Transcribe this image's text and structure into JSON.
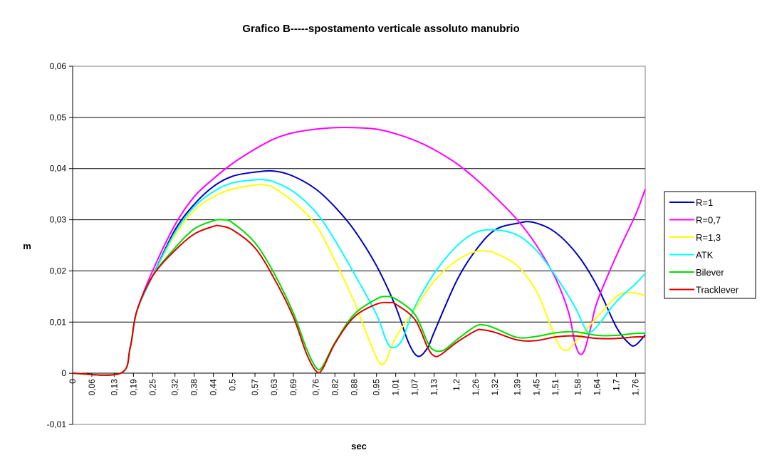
{
  "chart_data": {
    "type": "line",
    "title": "Grafico B-----spostamento verticale assoluto manubrio",
    "xlabel": "sec",
    "ylabel": "m",
    "xlim": [
      0,
      1.79
    ],
    "ylim": [
      -0.01,
      0.06
    ],
    "grid": "horizontal",
    "legend_position": "right",
    "y_ticks": [
      {
        "value": 0.06,
        "label": "0,06"
      },
      {
        "value": 0.05,
        "label": "0,05"
      },
      {
        "value": 0.04,
        "label": "0,04"
      },
      {
        "value": 0.03,
        "label": "0,03"
      },
      {
        "value": 0.02,
        "label": "0,02"
      },
      {
        "value": 0.01,
        "label": "0,01"
      },
      {
        "value": 0,
        "label": "0"
      },
      {
        "value": -0.01,
        "label": "-0,01"
      }
    ],
    "x_ticks": [
      {
        "value": 0,
        "label": "0"
      },
      {
        "value": 0.06,
        "label": "0,06"
      },
      {
        "value": 0.13,
        "label": "0,13"
      },
      {
        "value": 0.19,
        "label": "0,19"
      },
      {
        "value": 0.25,
        "label": "0,25"
      },
      {
        "value": 0.32,
        "label": "0,32"
      },
      {
        "value": 0.38,
        "label": "0,38"
      },
      {
        "value": 0.44,
        "label": "0,44"
      },
      {
        "value": 0.5,
        "label": "0,5"
      },
      {
        "value": 0.57,
        "label": "0,57"
      },
      {
        "value": 0.63,
        "label": "0,63"
      },
      {
        "value": 0.69,
        "label": "0,69"
      },
      {
        "value": 0.76,
        "label": "0,76"
      },
      {
        "value": 0.82,
        "label": "0,82"
      },
      {
        "value": 0.88,
        "label": "0,88"
      },
      {
        "value": 0.95,
        "label": "0,95"
      },
      {
        "value": 1.01,
        "label": "1,01"
      },
      {
        "value": 1.07,
        "label": "1,07"
      },
      {
        "value": 1.13,
        "label": "1,13"
      },
      {
        "value": 1.2,
        "label": "1,2"
      },
      {
        "value": 1.26,
        "label": "1,26"
      },
      {
        "value": 1.32,
        "label": "1,32"
      },
      {
        "value": 1.39,
        "label": "1,39"
      },
      {
        "value": 1.45,
        "label": "1,45"
      },
      {
        "value": 1.51,
        "label": "1,51"
      },
      {
        "value": 1.58,
        "label": "1,58"
      },
      {
        "value": 1.64,
        "label": "1,64"
      },
      {
        "value": 1.7,
        "label": "1,7"
      },
      {
        "value": 1.76,
        "label": "1,76"
      }
    ],
    "series": [
      {
        "name": "R=1",
        "color": "#0000c0",
        "points": [
          [
            0,
            0
          ],
          [
            0.15,
            0
          ],
          [
            0.18,
            0.005
          ],
          [
            0.2,
            0.012
          ],
          [
            0.25,
            0.019
          ],
          [
            0.32,
            0.028
          ],
          [
            0.38,
            0.033
          ],
          [
            0.44,
            0.0365
          ],
          [
            0.5,
            0.0385
          ],
          [
            0.57,
            0.0393
          ],
          [
            0.63,
            0.0395
          ],
          [
            0.69,
            0.0385
          ],
          [
            0.76,
            0.036
          ],
          [
            0.82,
            0.0325
          ],
          [
            0.88,
            0.028
          ],
          [
            0.95,
            0.021
          ],
          [
            1.01,
            0.013
          ],
          [
            1.05,
            0.006
          ],
          [
            1.08,
            0.0033
          ],
          [
            1.11,
            0.005
          ],
          [
            1.13,
            0.008
          ],
          [
            1.2,
            0.018
          ],
          [
            1.26,
            0.024
          ],
          [
            1.32,
            0.028
          ],
          [
            1.39,
            0.0293
          ],
          [
            1.44,
            0.0295
          ],
          [
            1.51,
            0.0275
          ],
          [
            1.58,
            0.023
          ],
          [
            1.64,
            0.017
          ],
          [
            1.7,
            0.009
          ],
          [
            1.74,
            0.0058
          ],
          [
            1.76,
            0.0055
          ],
          [
            1.79,
            0.0075
          ]
        ]
      },
      {
        "name": "R=0,7",
        "color": "#ff00ff",
        "points": [
          [
            0,
            0
          ],
          [
            0.15,
            0
          ],
          [
            0.18,
            0.005
          ],
          [
            0.2,
            0.012
          ],
          [
            0.25,
            0.02
          ],
          [
            0.32,
            0.029
          ],
          [
            0.38,
            0.0345
          ],
          [
            0.44,
            0.038
          ],
          [
            0.5,
            0.041
          ],
          [
            0.57,
            0.0438
          ],
          [
            0.63,
            0.0458
          ],
          [
            0.69,
            0.047
          ],
          [
            0.76,
            0.0477
          ],
          [
            0.82,
            0.048
          ],
          [
            0.88,
            0.048
          ],
          [
            0.95,
            0.0477
          ],
          [
            1.01,
            0.0468
          ],
          [
            1.07,
            0.0455
          ],
          [
            1.13,
            0.0437
          ],
          [
            1.2,
            0.041
          ],
          [
            1.26,
            0.038
          ],
          [
            1.32,
            0.0345
          ],
          [
            1.39,
            0.03
          ],
          [
            1.45,
            0.025
          ],
          [
            1.51,
            0.0185
          ],
          [
            1.55,
            0.012
          ],
          [
            1.57,
            0.006
          ],
          [
            1.585,
            0.0038
          ],
          [
            1.6,
            0.0045
          ],
          [
            1.62,
            0.009
          ],
          [
            1.64,
            0.014
          ],
          [
            1.7,
            0.023
          ],
          [
            1.76,
            0.031
          ],
          [
            1.79,
            0.036
          ]
        ]
      },
      {
        "name": "R=1,3",
        "color": "#ffff00",
        "points": [
          [
            0,
            0
          ],
          [
            0.15,
            0
          ],
          [
            0.18,
            0.005
          ],
          [
            0.2,
            0.012
          ],
          [
            0.25,
            0.019
          ],
          [
            0.32,
            0.027
          ],
          [
            0.38,
            0.0318
          ],
          [
            0.44,
            0.0345
          ],
          [
            0.5,
            0.036
          ],
          [
            0.57,
            0.0368
          ],
          [
            0.6,
            0.0368
          ],
          [
            0.63,
            0.0362
          ],
          [
            0.69,
            0.0335
          ],
          [
            0.76,
            0.029
          ],
          [
            0.82,
            0.022
          ],
          [
            0.88,
            0.014
          ],
          [
            0.93,
            0.006
          ],
          [
            0.96,
            0.002
          ],
          [
            0.98,
            0.0025
          ],
          [
            1.01,
            0.007
          ],
          [
            1.07,
            0.0125
          ],
          [
            1.13,
            0.018
          ],
          [
            1.2,
            0.022
          ],
          [
            1.26,
            0.0238
          ],
          [
            1.3,
            0.0238
          ],
          [
            1.32,
            0.0235
          ],
          [
            1.39,
            0.021
          ],
          [
            1.45,
            0.016
          ],
          [
            1.49,
            0.01
          ],
          [
            1.52,
            0.0055
          ],
          [
            1.545,
            0.0045
          ],
          [
            1.57,
            0.006
          ],
          [
            1.64,
            0.011
          ],
          [
            1.7,
            0.015
          ],
          [
            1.74,
            0.0158
          ],
          [
            1.79,
            0.0152
          ]
        ]
      },
      {
        "name": "ATK",
        "color": "#00ffff",
        "points": [
          [
            0,
            0
          ],
          [
            0.15,
            0
          ],
          [
            0.18,
            0.005
          ],
          [
            0.2,
            0.012
          ],
          [
            0.25,
            0.019
          ],
          [
            0.32,
            0.0275
          ],
          [
            0.38,
            0.0325
          ],
          [
            0.44,
            0.0355
          ],
          [
            0.5,
            0.0372
          ],
          [
            0.57,
            0.0378
          ],
          [
            0.6,
            0.0378
          ],
          [
            0.63,
            0.0374
          ],
          [
            0.69,
            0.0355
          ],
          [
            0.76,
            0.0315
          ],
          [
            0.82,
            0.026
          ],
          [
            0.88,
            0.0195
          ],
          [
            0.95,
            0.0115
          ],
          [
            0.98,
            0.0065
          ],
          [
            1.0,
            0.005
          ],
          [
            1.03,
            0.0065
          ],
          [
            1.07,
            0.013
          ],
          [
            1.13,
            0.0195
          ],
          [
            1.2,
            0.0248
          ],
          [
            1.26,
            0.0275
          ],
          [
            1.32,
            0.028
          ],
          [
            1.39,
            0.027
          ],
          [
            1.45,
            0.024
          ],
          [
            1.51,
            0.019
          ],
          [
            1.57,
            0.013
          ],
          [
            1.6,
            0.009
          ],
          [
            1.615,
            0.008
          ],
          [
            1.64,
            0.0092
          ],
          [
            1.7,
            0.014
          ],
          [
            1.76,
            0.0175
          ],
          [
            1.79,
            0.0195
          ]
        ]
      },
      {
        "name": "Bilever",
        "color": "#00dd00",
        "points": [
          [
            0,
            0
          ],
          [
            0.15,
            0
          ],
          [
            0.18,
            0.005
          ],
          [
            0.2,
            0.012
          ],
          [
            0.25,
            0.019
          ],
          [
            0.32,
            0.0245
          ],
          [
            0.38,
            0.0282
          ],
          [
            0.44,
            0.0298
          ],
          [
            0.47,
            0.03
          ],
          [
            0.5,
            0.0294
          ],
          [
            0.57,
            0.0255
          ],
          [
            0.63,
            0.0195
          ],
          [
            0.69,
            0.0118
          ],
          [
            0.73,
            0.005
          ],
          [
            0.76,
            0.0012
          ],
          [
            0.78,
            0.0012
          ],
          [
            0.82,
            0.006
          ],
          [
            0.88,
            0.0115
          ],
          [
            0.95,
            0.0145
          ],
          [
            0.98,
            0.015
          ],
          [
            1.01,
            0.0145
          ],
          [
            1.07,
            0.0115
          ],
          [
            1.11,
            0.006
          ],
          [
            1.13,
            0.0045
          ],
          [
            1.16,
            0.0045
          ],
          [
            1.2,
            0.0065
          ],
          [
            1.26,
            0.0092
          ],
          [
            1.29,
            0.0094
          ],
          [
            1.32,
            0.0088
          ],
          [
            1.39,
            0.007
          ],
          [
            1.45,
            0.0072
          ],
          [
            1.51,
            0.0079
          ],
          [
            1.57,
            0.0081
          ],
          [
            1.64,
            0.0074
          ],
          [
            1.7,
            0.0074
          ],
          [
            1.76,
            0.0078
          ],
          [
            1.79,
            0.0078
          ]
        ]
      },
      {
        "name": "Tracklever",
        "color": "#dd0000",
        "points": [
          [
            0,
            0
          ],
          [
            0.15,
            0
          ],
          [
            0.18,
            0.005
          ],
          [
            0.2,
            0.012
          ],
          [
            0.25,
            0.019
          ],
          [
            0.32,
            0.024
          ],
          [
            0.38,
            0.0272
          ],
          [
            0.44,
            0.0287
          ],
          [
            0.46,
            0.0288
          ],
          [
            0.5,
            0.028
          ],
          [
            0.57,
            0.0245
          ],
          [
            0.63,
            0.0185
          ],
          [
            0.69,
            0.011
          ],
          [
            0.73,
            0.004
          ],
          [
            0.76,
            0.0005
          ],
          [
            0.78,
            0.0007
          ],
          [
            0.82,
            0.0058
          ],
          [
            0.88,
            0.011
          ],
          [
            0.95,
            0.0135
          ],
          [
            0.99,
            0.0138
          ],
          [
            1.01,
            0.0135
          ],
          [
            1.07,
            0.0105
          ],
          [
            1.11,
            0.005
          ],
          [
            1.13,
            0.0034
          ],
          [
            1.15,
            0.0036
          ],
          [
            1.2,
            0.006
          ],
          [
            1.26,
            0.0083
          ],
          [
            1.28,
            0.0085
          ],
          [
            1.32,
            0.008
          ],
          [
            1.39,
            0.0065
          ],
          [
            1.45,
            0.0064
          ],
          [
            1.51,
            0.0071
          ],
          [
            1.57,
            0.0073
          ],
          [
            1.64,
            0.0068
          ],
          [
            1.7,
            0.0068
          ],
          [
            1.76,
            0.0071
          ],
          [
            1.79,
            0.0071
          ]
        ]
      }
    ]
  }
}
